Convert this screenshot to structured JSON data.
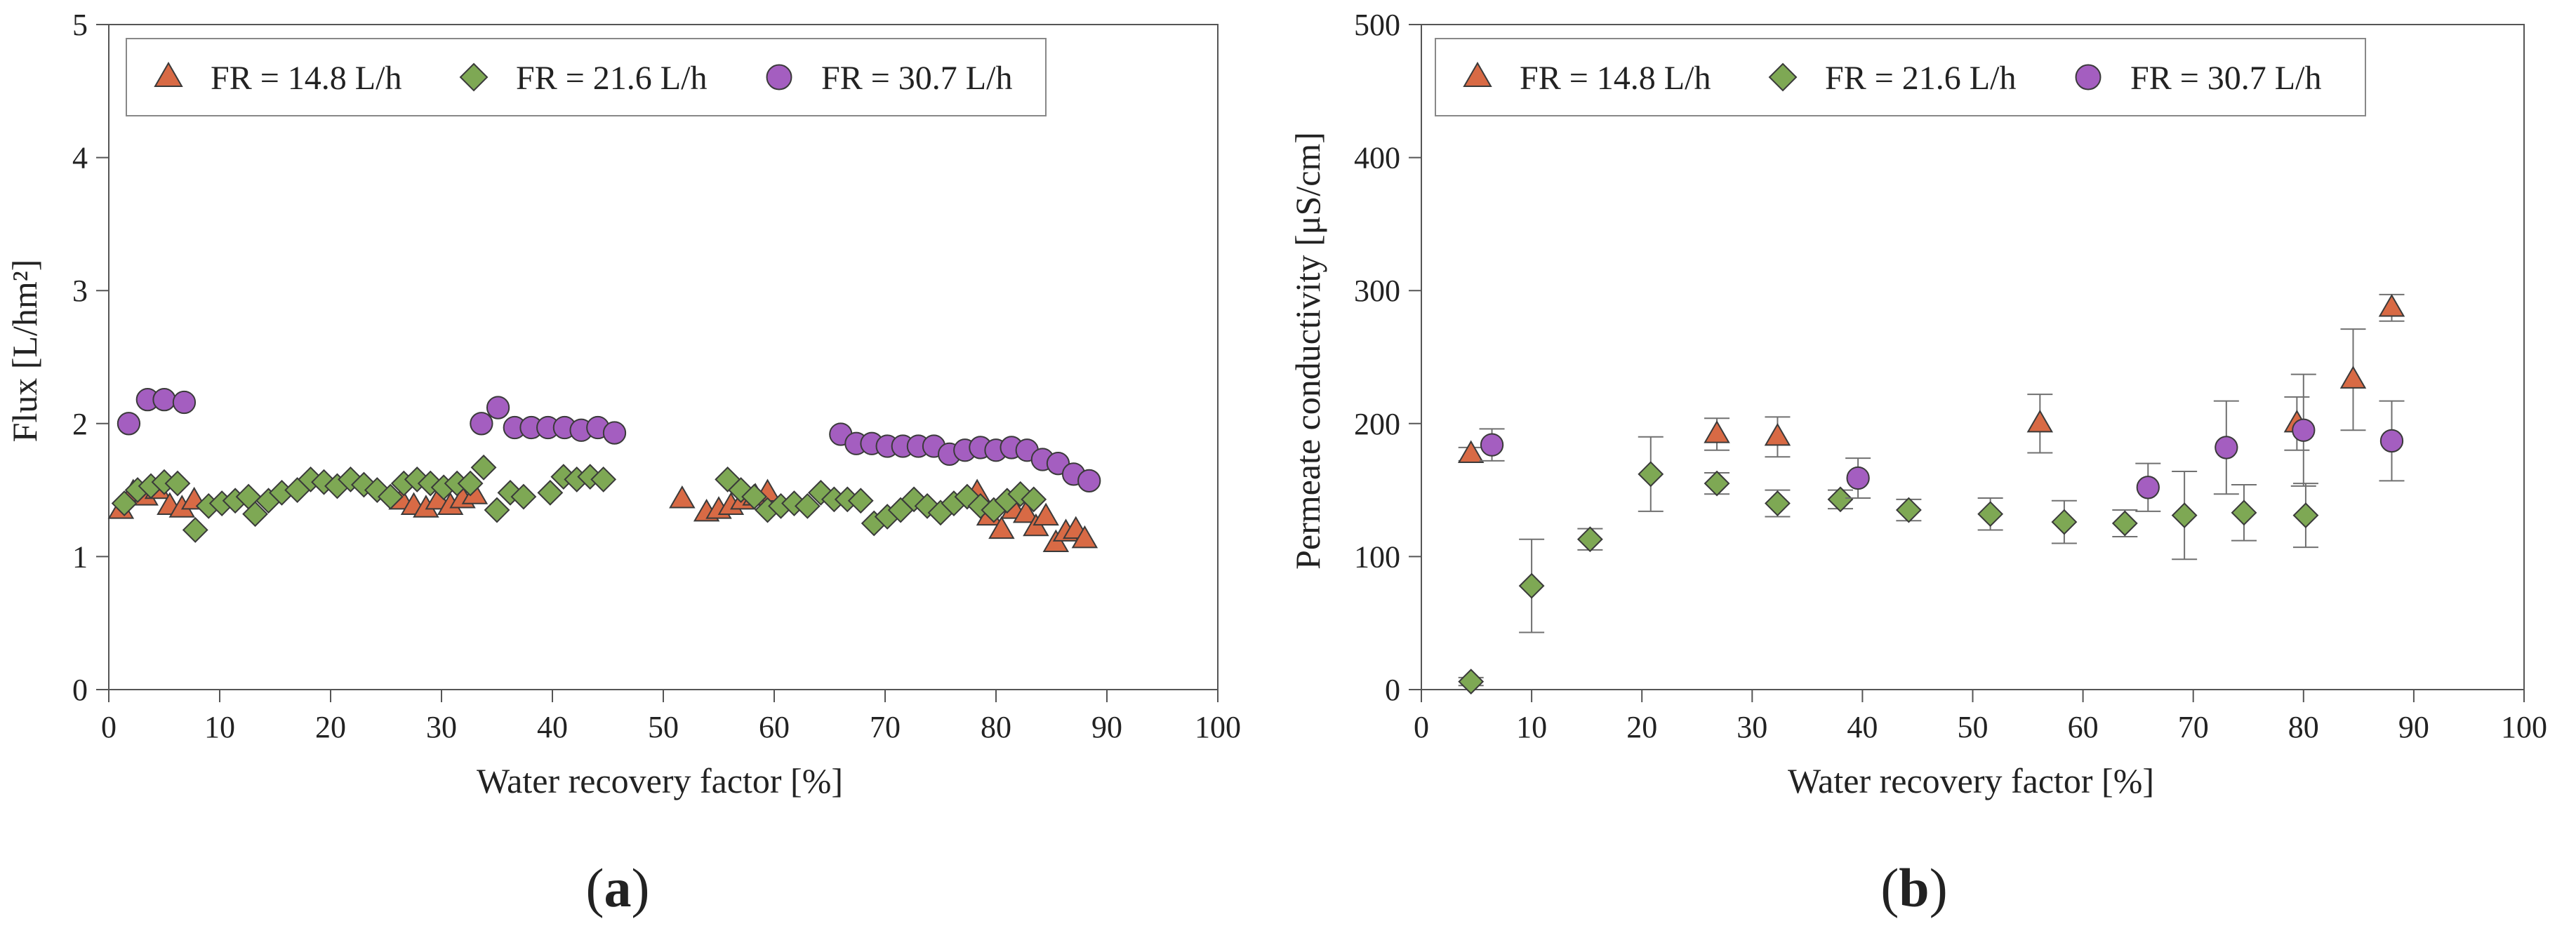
{
  "figure": {
    "panels": [
      {
        "label_open": "(",
        "label_letter": "a",
        "label_close": ")"
      },
      {
        "label_open": "(",
        "label_letter": "b",
        "label_close": ")"
      }
    ]
  },
  "chart_data": [
    {
      "type": "scatter",
      "title": "",
      "xlabel": "Water recovery factor [%]",
      "ylabel": "Flux [L/hm²]",
      "xlim": [
        0,
        100
      ],
      "ylim": [
        0,
        5
      ],
      "xticks": [
        0,
        10,
        20,
        30,
        40,
        50,
        60,
        70,
        80,
        90,
        100
      ],
      "yticks": [
        0,
        1,
        2,
        3,
        4,
        5
      ],
      "grid": false,
      "legend_position": "top-left",
      "series": [
        {
          "name": "FR = 14.8 L/h",
          "marker": "triangle",
          "color": "#d86a45",
          "points": [
            [
              1.1,
              1.35
            ],
            [
              2.2,
              1.48
            ],
            [
              3.3,
              1.45
            ],
            [
              4.4,
              1.5
            ],
            [
              5.5,
              1.38
            ],
            [
              6.6,
              1.36
            ],
            [
              7.7,
              1.42
            ],
            [
              26.4,
              1.42
            ],
            [
              27.5,
              1.38
            ],
            [
              28.6,
              1.36
            ],
            [
              29.7,
              1.42
            ],
            [
              30.8,
              1.38
            ],
            [
              31.9,
              1.43
            ],
            [
              33,
              1.46
            ],
            [
              51.7,
              1.43
            ],
            [
              53.9,
              1.33
            ],
            [
              55,
              1.35
            ],
            [
              56.1,
              1.38
            ],
            [
              57.2,
              1.42
            ],
            [
              58.3,
              1.45
            ],
            [
              59.4,
              1.48
            ],
            [
              78.3,
              1.48
            ],
            [
              79.4,
              1.3
            ],
            [
              80.5,
              1.2
            ],
            [
              81.6,
              1.35
            ],
            [
              82.7,
              1.32
            ],
            [
              83.6,
              1.22
            ],
            [
              84.5,
              1.3
            ],
            [
              85.4,
              1.1
            ],
            [
              86.3,
              1.18
            ],
            [
              87.2,
              1.2
            ],
            [
              88,
              1.13
            ]
          ]
        },
        {
          "name": "FR = 21.6 L/h",
          "marker": "diamond",
          "color": "#7ea854",
          "points": [
            [
              1.4,
              1.4
            ],
            [
              2.6,
              1.5
            ],
            [
              3.8,
              1.53
            ],
            [
              5,
              1.56
            ],
            [
              6.2,
              1.55
            ],
            [
              7.8,
              1.2
            ],
            [
              9,
              1.38
            ],
            [
              10.2,
              1.4
            ],
            [
              11.4,
              1.42
            ],
            [
              12.6,
              1.45
            ],
            [
              13.2,
              1.32
            ],
            [
              14.4,
              1.42
            ],
            [
              15.6,
              1.48
            ],
            [
              17,
              1.5
            ],
            [
              18.2,
              1.58
            ],
            [
              19.4,
              1.56
            ],
            [
              20.6,
              1.53
            ],
            [
              21.8,
              1.58
            ],
            [
              23,
              1.54
            ],
            [
              24.2,
              1.5
            ],
            [
              25.4,
              1.45
            ],
            [
              26.6,
              1.55
            ],
            [
              27.8,
              1.58
            ],
            [
              29,
              1.55
            ],
            [
              30.2,
              1.52
            ],
            [
              31.4,
              1.55
            ],
            [
              32.6,
              1.55
            ],
            [
              33.8,
              1.67
            ],
            [
              35,
              1.35
            ],
            [
              36.2,
              1.48
            ],
            [
              37.4,
              1.45
            ],
            [
              39.8,
              1.48
            ],
            [
              41,
              1.6
            ],
            [
              42.2,
              1.58
            ],
            [
              43.4,
              1.6
            ],
            [
              44.6,
              1.58
            ],
            [
              55.8,
              1.58
            ],
            [
              57,
              1.5
            ],
            [
              58.2,
              1.45
            ],
            [
              59.4,
              1.35
            ],
            [
              60.6,
              1.38
            ],
            [
              61.8,
              1.4
            ],
            [
              63,
              1.38
            ],
            [
              64.2,
              1.48
            ],
            [
              65.4,
              1.43
            ],
            [
              66.6,
              1.43
            ],
            [
              67.8,
              1.42
            ],
            [
              69,
              1.25
            ],
            [
              70.2,
              1.3
            ],
            [
              71.4,
              1.35
            ],
            [
              72.6,
              1.43
            ],
            [
              73.8,
              1.38
            ],
            [
              75,
              1.33
            ],
            [
              76.2,
              1.4
            ],
            [
              77.4,
              1.45
            ],
            [
              78.6,
              1.38
            ],
            [
              79.8,
              1.35
            ],
            [
              81,
              1.42
            ],
            [
              82.2,
              1.47
            ],
            [
              83.4,
              1.43
            ]
          ]
        },
        {
          "name": "FR = 30.7 L/h",
          "marker": "circle",
          "color": "#a45ec0",
          "points": [
            [
              1.8,
              2.0
            ],
            [
              3.5,
              2.18
            ],
            [
              5,
              2.18
            ],
            [
              6.8,
              2.16
            ],
            [
              33.6,
              2.0
            ],
            [
              35.1,
              2.12
            ],
            [
              36.6,
              1.97
            ],
            [
              38.1,
              1.97
            ],
            [
              39.6,
              1.97
            ],
            [
              41.1,
              1.97
            ],
            [
              42.6,
              1.95
            ],
            [
              44.1,
              1.97
            ],
            [
              45.6,
              1.93
            ],
            [
              66,
              1.92
            ],
            [
              67.4,
              1.85
            ],
            [
              68.8,
              1.85
            ],
            [
              70.2,
              1.83
            ],
            [
              71.6,
              1.83
            ],
            [
              73,
              1.83
            ],
            [
              74.4,
              1.83
            ],
            [
              75.8,
              1.77
            ],
            [
              77.2,
              1.8
            ],
            [
              78.6,
              1.82
            ],
            [
              80,
              1.8
            ],
            [
              81.4,
              1.82
            ],
            [
              82.8,
              1.8
            ],
            [
              84.2,
              1.73
            ],
            [
              85.6,
              1.7
            ],
            [
              87,
              1.62
            ],
            [
              88.4,
              1.57
            ]
          ]
        }
      ]
    },
    {
      "type": "scatter",
      "title": "",
      "xlabel": "Water recovery factor [%]",
      "ylabel": "Permeate conductivity [μS/cm]",
      "xlim": [
        0,
        100
      ],
      "ylim": [
        0,
        500
      ],
      "xticks": [
        0,
        10,
        20,
        30,
        40,
        50,
        60,
        70,
        80,
        90,
        100
      ],
      "yticks": [
        0,
        100,
        200,
        300,
        400,
        500
      ],
      "grid": false,
      "error_bars": true,
      "legend_position": "top-left",
      "series": [
        {
          "name": "FR = 14.8 L/h",
          "marker": "triangle",
          "color": "#d86a45",
          "points": [
            [
              4.5,
              177,
              5
            ],
            [
              26.8,
              192,
              12
            ],
            [
              32.3,
              190,
              15
            ],
            [
              56.1,
              200,
              22
            ],
            [
              79.4,
              200,
              20
            ],
            [
              84.5,
              233,
              38
            ],
            [
              88,
              287,
              10
            ]
          ]
        },
        {
          "name": "FR = 21.6 L/h",
          "marker": "diamond",
          "color": "#7ea854",
          "points": [
            [
              4.5,
              6,
              3
            ],
            [
              10,
              78,
              35
            ],
            [
              15.3,
              113,
              8
            ],
            [
              20.8,
              162,
              28
            ],
            [
              26.8,
              155,
              8
            ],
            [
              32.3,
              140,
              10
            ],
            [
              38,
              143,
              7
            ],
            [
              44.2,
              135,
              8
            ],
            [
              51.6,
              132,
              12
            ],
            [
              58.3,
              126,
              16
            ],
            [
              63.8,
              125,
              10
            ],
            [
              69.2,
              131,
              33
            ],
            [
              74.6,
              133,
              21
            ],
            [
              80.2,
              131,
              24
            ]
          ]
        },
        {
          "name": "FR = 30.7 L/h",
          "marker": "circle",
          "color": "#a45ec0",
          "points": [
            [
              6.4,
              184,
              12
            ],
            [
              39.6,
              159,
              15
            ],
            [
              65.9,
              152,
              18
            ],
            [
              73,
              182,
              35
            ],
            [
              80,
              195,
              42
            ],
            [
              88,
              187,
              30
            ]
          ]
        }
      ]
    }
  ]
}
